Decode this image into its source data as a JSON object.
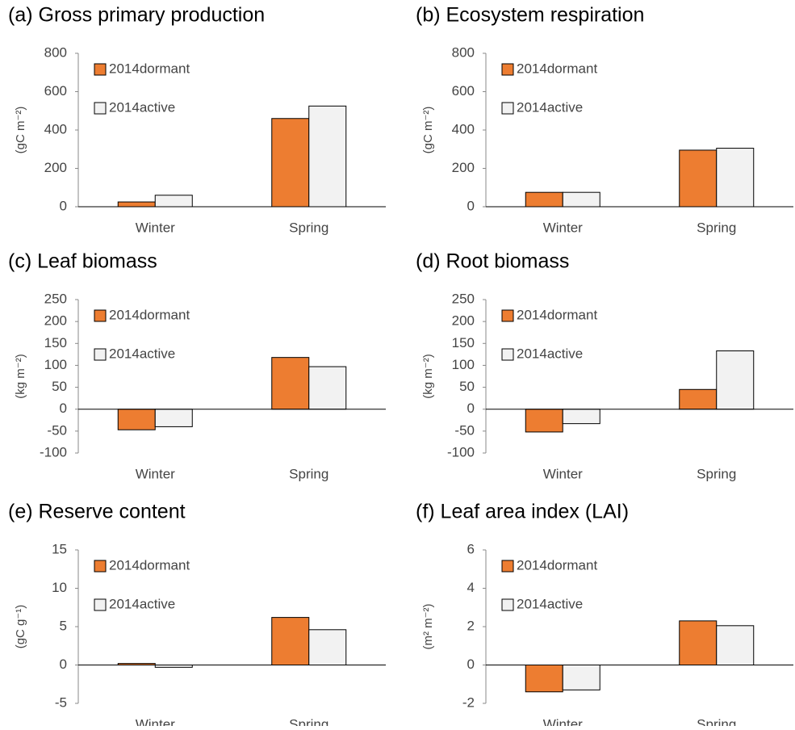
{
  "chart_data": [
    {
      "type": "bar",
      "title": "(a) Gross primary production",
      "y_label": "(gC m⁻²)",
      "categories": [
        "Winter",
        "Spring"
      ],
      "series": [
        {
          "name": "2014dormant",
          "color": "#ED7D31",
          "values": [
            25,
            460
          ]
        },
        {
          "name": "2014active",
          "color": "#F2F2F2",
          "values": [
            60,
            525
          ]
        }
      ],
      "ylim": [
        0,
        800
      ],
      "yticks": [
        0,
        200,
        400,
        600,
        800
      ]
    },
    {
      "type": "bar",
      "title": "(b) Ecosystem respiration",
      "y_label": "(gC m⁻²)",
      "categories": [
        "Winter",
        "Spring"
      ],
      "series": [
        {
          "name": "2014dormant",
          "color": "#ED7D31",
          "values": [
            75,
            295
          ]
        },
        {
          "name": "2014active",
          "color": "#F2F2F2",
          "values": [
            75,
            305
          ]
        }
      ],
      "ylim": [
        0,
        800
      ],
      "yticks": [
        0,
        200,
        400,
        600,
        800
      ]
    },
    {
      "type": "bar",
      "title": "(c) Leaf biomass",
      "y_label": "(kg m⁻²)",
      "categories": [
        "Winter",
        "Spring"
      ],
      "series": [
        {
          "name": "2014dormant",
          "color": "#ED7D31",
          "values": [
            -47,
            118
          ]
        },
        {
          "name": "2014active",
          "color": "#F2F2F2",
          "values": [
            -40,
            97
          ]
        }
      ],
      "ylim": [
        -100,
        250
      ],
      "yticks": [
        -100,
        -50,
        0,
        50,
        100,
        150,
        200,
        250
      ]
    },
    {
      "type": "bar",
      "title": "(d) Root biomass",
      "y_label": "(kg m⁻²)",
      "categories": [
        "Winter",
        "Spring"
      ],
      "series": [
        {
          "name": "2014dormant",
          "color": "#ED7D31",
          "values": [
            -52,
            45
          ]
        },
        {
          "name": "2014active",
          "color": "#F2F2F2",
          "values": [
            -33,
            133
          ]
        }
      ],
      "ylim": [
        -100,
        250
      ],
      "yticks": [
        -100,
        -50,
        0,
        50,
        100,
        150,
        200,
        250
      ]
    },
    {
      "type": "bar",
      "title": "(e) Reserve content",
      "y_label": "(gC g⁻¹)",
      "categories": [
        "Winter",
        "Spring"
      ],
      "series": [
        {
          "name": "2014dormant",
          "color": "#ED7D31",
          "values": [
            0.2,
            6.2
          ]
        },
        {
          "name": "2014active",
          "color": "#F2F2F2",
          "values": [
            -0.3,
            4.6
          ]
        }
      ],
      "ylim": [
        -5,
        15
      ],
      "yticks": [
        -5,
        0,
        5,
        10,
        15
      ]
    },
    {
      "type": "bar",
      "title": "(f) Leaf area index (LAI)",
      "y_label": "(m² m⁻²)",
      "categories": [
        "Winter",
        "Spring"
      ],
      "series": [
        {
          "name": "2014dormant",
          "color": "#ED7D31",
          "values": [
            -1.4,
            2.3
          ]
        },
        {
          "name": "2014active",
          "color": "#F2F2F2",
          "values": [
            -1.3,
            2.05
          ]
        }
      ],
      "ylim": [
        -2,
        6
      ],
      "yticks": [
        -2,
        0,
        2,
        4,
        6
      ]
    }
  ]
}
